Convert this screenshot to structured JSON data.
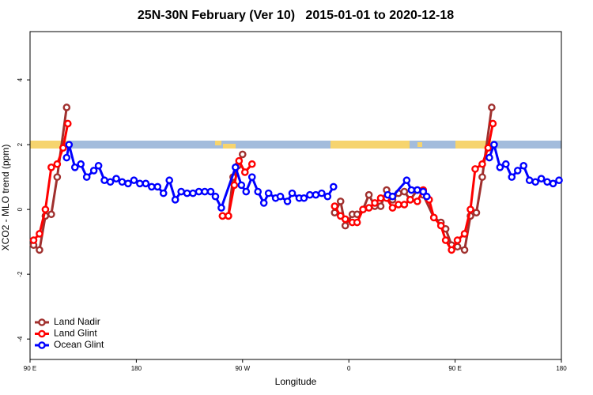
{
  "chart_data": {
    "type": "line",
    "title": "25N-30N February (Ver 10)   2015-01-01 to 2020-12-18",
    "x_label": "Longitude",
    "y_label": "XCO2 - MLO trend (ppm)",
    "xlim": [
      90,
      540
    ],
    "xticks": [
      {
        "value": 90,
        "label": "90 E"
      },
      {
        "value": 180,
        "label": "180"
      },
      {
        "value": 270,
        "label": "90 W"
      },
      {
        "value": 360,
        "label": "0"
      },
      {
        "value": 450,
        "label": "90 E"
      },
      {
        "value": 540,
        "label": "180"
      }
    ],
    "ylim": [
      -4.63,
      5.49
    ],
    "yticks": [
      -4,
      -2,
      0,
      2,
      4
    ],
    "legend": "bottom-left",
    "series": [
      {
        "name": "Land Nadir",
        "color": "#a0302e",
        "x": [
          93,
          98,
          103,
          108,
          113,
          121,
          180,
          253,
          258,
          262,
          266,
          270,
          310,
          348,
          353,
          357,
          363,
          367,
          372,
          377,
          382,
          387,
          392,
          397,
          402,
          407,
          412,
          418,
          423,
          432,
          438,
          442,
          447,
          452,
          458,
          463,
          468,
          473,
          481
        ],
        "values": [
          -1.1,
          -1.25,
          -0.2,
          -0.15,
          1.0,
          3.15,
          null,
          -0.2,
          -0.2,
          1.0,
          1.35,
          1.7,
          null,
          -0.1,
          0.25,
          -0.5,
          -0.15,
          -0.15,
          0,
          0.45,
          0.1,
          0.1,
          0.6,
          0.3,
          0.5,
          0.55,
          0.3,
          0.6,
          0.45,
          -0.25,
          -0.4,
          -0.6,
          -1.1,
          -1.15,
          -1.25,
          -0.2,
          -0.1,
          1.0,
          3.15
        ]
      },
      {
        "name": "Land Glint",
        "color": "#ff0000",
        "x": [
          93,
          98,
          103,
          108,
          113,
          118,
          122,
          180,
          253,
          258,
          263,
          267,
          272,
          278,
          320,
          348,
          353,
          357,
          363,
          367,
          372,
          377,
          382,
          387,
          392,
          397,
          402,
          407,
          412,
          418,
          423,
          428,
          432,
          438,
          442,
          447,
          452,
          458,
          463,
          467,
          473,
          478,
          482
        ],
        "values": [
          -0.95,
          -0.75,
          0,
          1.3,
          1.4,
          1.9,
          2.65,
          null,
          -0.2,
          -0.2,
          0.75,
          1.5,
          1.15,
          1.4,
          null,
          0.1,
          -0.2,
          -0.3,
          -0.4,
          -0.4,
          0,
          0.05,
          0.2,
          0.35,
          0.35,
          0.05,
          0.15,
          0.15,
          0.3,
          0.25,
          0.6,
          0.3,
          -0.25,
          -0.5,
          -0.95,
          -1.25,
          -0.95,
          -0.75,
          0,
          1.25,
          1.4,
          1.9,
          2.65
        ]
      },
      {
        "name": "Ocean Glint",
        "color": "#0000ff",
        "x": [
          121,
          123,
          128,
          133,
          138,
          144,
          148,
          153,
          158,
          163,
          168,
          173,
          178,
          183,
          188,
          193,
          198,
          203,
          208,
          213,
          218,
          223,
          228,
          233,
          238,
          243,
          247,
          252,
          264,
          269,
          273,
          278,
          283,
          288,
          292,
          298,
          302,
          308,
          312,
          318,
          322,
          327,
          332,
          337,
          342,
          347,
          390,
          393,
          397,
          409,
          413,
          418,
          423,
          426,
          450,
          479,
          483,
          488,
          493,
          498,
          503,
          508,
          513,
          518,
          523,
          528,
          533,
          538
        ],
        "values": [
          1.6,
          2.0,
          1.3,
          1.4,
          1.0,
          1.2,
          1.35,
          0.9,
          0.85,
          0.95,
          0.85,
          0.8,
          0.9,
          0.8,
          0.8,
          0.7,
          0.7,
          0.5,
          0.9,
          0.3,
          0.55,
          0.5,
          0.5,
          0.55,
          0.55,
          0.55,
          0.4,
          0.05,
          1.3,
          0.75,
          0.55,
          1.0,
          0.55,
          0.2,
          0.5,
          0.35,
          0.4,
          0.25,
          0.5,
          0.35,
          0.35,
          0.45,
          0.45,
          0.5,
          0.4,
          0.7,
          null,
          0.45,
          0.4,
          0.9,
          0.6,
          0.6,
          0.55,
          0.4,
          null,
          1.6,
          2.0,
          1.3,
          1.4,
          1.0,
          1.2,
          1.35,
          0.9,
          0.85,
          0.95,
          0.85,
          0.8,
          0.9
        ]
      }
    ]
  }
}
